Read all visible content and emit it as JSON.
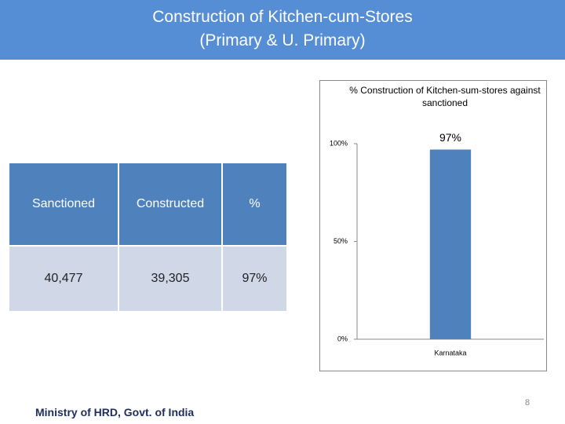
{
  "header": {
    "title_lines": [
      "Construction of Kitchen-cum-Stores",
      "(Primary & U. Primary)"
    ]
  },
  "table": {
    "columns": [
      "Sanctioned",
      "Constructed",
      "%"
    ],
    "rows": [
      [
        "40,477",
        "39,305",
        "97%"
      ]
    ]
  },
  "chart_data": {
    "type": "bar",
    "title": "% Construction of Kitchen-sum-stores against sanctioned",
    "categories": [
      "Karnataka"
    ],
    "values": [
      97
    ],
    "value_labels": [
      "97%"
    ],
    "color": "#4f81bd",
    "ylim": [
      0,
      100
    ],
    "yticks": [
      {
        "value": 0,
        "label": "0%"
      },
      {
        "value": 50,
        "label": "50%"
      },
      {
        "value": 100,
        "label": "100%"
      }
    ]
  },
  "footer": {
    "source": "Ministry of HRD, Govt. of India",
    "page_number": 8
  }
}
